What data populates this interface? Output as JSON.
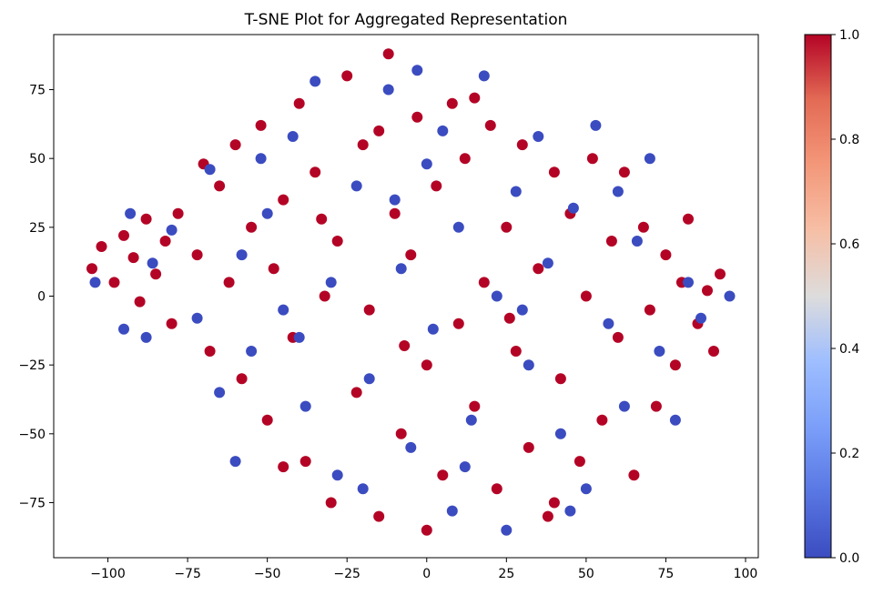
{
  "chart_data": {
    "type": "scatter",
    "title": "T-SNE Plot for Aggregated Representation",
    "xlabel": "",
    "ylabel": "",
    "xlim": [
      -117,
      104
    ],
    "ylim": [
      -95,
      95
    ],
    "xticks": [
      -100,
      -75,
      -50,
      -25,
      0,
      25,
      50,
      75,
      100
    ],
    "xtick_labels": [
      "−100",
      "−75",
      "−50",
      "−25",
      "0",
      "25",
      "50",
      "75",
      "100"
    ],
    "yticks": [
      -75,
      -50,
      -25,
      0,
      25,
      50,
      75
    ],
    "ytick_labels": [
      "−75",
      "−50",
      "−25",
      "0",
      "25",
      "50",
      "75"
    ],
    "grid": false,
    "colormap": "coolwarm",
    "color_low": "#3b4cc0",
    "color_high": "#b40426",
    "colorbar": {
      "range": [
        0.0,
        1.0
      ],
      "ticks": [
        0.0,
        0.2,
        0.4,
        0.6,
        0.8,
        1.0
      ],
      "tick_labels": [
        "0.0",
        "0.2",
        "0.4",
        "0.6",
        "0.8",
        "1.0"
      ]
    },
    "series": [
      {
        "label_value": 1,
        "points": [
          [
            -105,
            10
          ],
          [
            -102,
            18
          ],
          [
            -98,
            5
          ],
          [
            -95,
            22
          ],
          [
            -92,
            14
          ],
          [
            -90,
            -2
          ],
          [
            -88,
            28
          ],
          [
            -85,
            8
          ],
          [
            -82,
            20
          ],
          [
            -80,
            -10
          ],
          [
            -78,
            30
          ],
          [
            -72,
            15
          ],
          [
            -68,
            -20
          ],
          [
            -65,
            40
          ],
          [
            -62,
            5
          ],
          [
            -60,
            55
          ],
          [
            -58,
            -30
          ],
          [
            -55,
            25
          ],
          [
            -52,
            62
          ],
          [
            -50,
            -45
          ],
          [
            -48,
            10
          ],
          [
            -45,
            35
          ],
          [
            -42,
            -15
          ],
          [
            -40,
            70
          ],
          [
            -38,
            -60
          ],
          [
            -35,
            45
          ],
          [
            -32,
            0
          ],
          [
            -30,
            -75
          ],
          [
            -28,
            20
          ],
          [
            -25,
            80
          ],
          [
            -22,
            -35
          ],
          [
            -20,
            55
          ],
          [
            -18,
            -5
          ],
          [
            -15,
            -80
          ],
          [
            -12,
            88
          ],
          [
            -10,
            30
          ],
          [
            -8,
            -50
          ],
          [
            -5,
            15
          ],
          [
            -3,
            65
          ],
          [
            0,
            -25
          ],
          [
            0,
            -85
          ],
          [
            3,
            40
          ],
          [
            5,
            -65
          ],
          [
            8,
            70
          ],
          [
            10,
            -10
          ],
          [
            12,
            50
          ],
          [
            15,
            -40
          ],
          [
            18,
            5
          ],
          [
            20,
            62
          ],
          [
            22,
            -70
          ],
          [
            25,
            25
          ],
          [
            28,
            -20
          ],
          [
            30,
            55
          ],
          [
            32,
            -55
          ],
          [
            35,
            10
          ],
          [
            38,
            -80
          ],
          [
            40,
            45
          ],
          [
            42,
            -30
          ],
          [
            45,
            30
          ],
          [
            48,
            -60
          ],
          [
            50,
            0
          ],
          [
            52,
            50
          ],
          [
            55,
            -45
          ],
          [
            58,
            20
          ],
          [
            60,
            -15
          ],
          [
            62,
            45
          ],
          [
            65,
            -65
          ],
          [
            68,
            25
          ],
          [
            70,
            -5
          ],
          [
            72,
            -40
          ],
          [
            75,
            15
          ],
          [
            78,
            -25
          ],
          [
            80,
            5
          ],
          [
            82,
            28
          ],
          [
            85,
            -10
          ],
          [
            88,
            2
          ],
          [
            90,
            -20
          ],
          [
            92,
            8
          ],
          [
            -70,
            48
          ],
          [
            -45,
            -62
          ],
          [
            -15,
            60
          ],
          [
            15,
            72
          ],
          [
            40,
            -75
          ],
          [
            -33,
            28
          ],
          [
            26,
            -8
          ],
          [
            -7,
            -18
          ]
        ]
      },
      {
        "label_value": 0,
        "points": [
          [
            -104,
            5
          ],
          [
            -95,
            -12
          ],
          [
            -93,
            30
          ],
          [
            -86,
            12
          ],
          [
            -80,
            24
          ],
          [
            -72,
            -8
          ],
          [
            -68,
            46
          ],
          [
            -60,
            -60
          ],
          [
            -58,
            15
          ],
          [
            -55,
            -20
          ],
          [
            -50,
            30
          ],
          [
            -45,
            -5
          ],
          [
            -42,
            58
          ],
          [
            -38,
            -40
          ],
          [
            -35,
            78
          ],
          [
            -30,
            5
          ],
          [
            -28,
            -65
          ],
          [
            -22,
            40
          ],
          [
            -18,
            -30
          ],
          [
            -12,
            75
          ],
          [
            -8,
            10
          ],
          [
            -5,
            -55
          ],
          [
            -3,
            82
          ],
          [
            2,
            -12
          ],
          [
            5,
            60
          ],
          [
            8,
            -78
          ],
          [
            10,
            25
          ],
          [
            14,
            -45
          ],
          [
            18,
            80
          ],
          [
            22,
            0
          ],
          [
            25,
            -85
          ],
          [
            28,
            38
          ],
          [
            32,
            -25
          ],
          [
            35,
            58
          ],
          [
            38,
            12
          ],
          [
            42,
            -50
          ],
          [
            46,
            32
          ],
          [
            50,
            -70
          ],
          [
            53,
            62
          ],
          [
            57,
            -10
          ],
          [
            62,
            -40
          ],
          [
            66,
            20
          ],
          [
            70,
            50
          ],
          [
            73,
            -20
          ],
          [
            78,
            -45
          ],
          [
            82,
            5
          ],
          [
            86,
            -8
          ],
          [
            95,
            0
          ],
          [
            -88,
            -15
          ],
          [
            -65,
            -35
          ],
          [
            -20,
            -70
          ],
          [
            12,
            -62
          ],
          [
            45,
            -78
          ],
          [
            -52,
            50
          ],
          [
            60,
            38
          ],
          [
            -10,
            35
          ],
          [
            30,
            -5
          ],
          [
            -40,
            -15
          ],
          [
            0,
            48
          ]
        ]
      }
    ]
  }
}
